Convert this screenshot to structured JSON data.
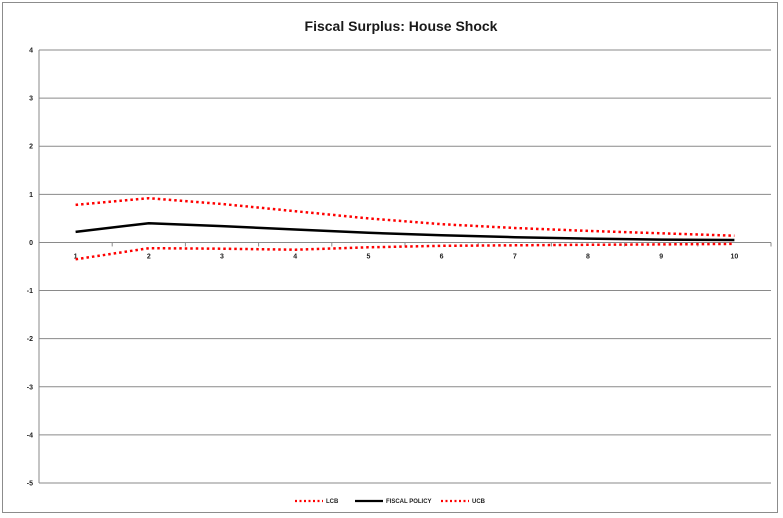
{
  "chart_data": {
    "type": "line",
    "title": "Fiscal Surplus: House Shock",
    "xlabel": "",
    "ylabel": "",
    "x": [
      1,
      2,
      3,
      4,
      5,
      6,
      7,
      8,
      9,
      10
    ],
    "x_tick_labels": [
      "1",
      "2",
      "3",
      "4",
      "5",
      "6",
      "7",
      "8",
      "9",
      "10"
    ],
    "y_tick_labels": [
      "4",
      "3",
      "2",
      "1",
      "0",
      "-1",
      "-2",
      "-3",
      "-4",
      "-5"
    ],
    "ylim": [
      -5,
      4
    ],
    "grid": true,
    "legend_position": "bottom",
    "series": [
      {
        "name": "LCB",
        "style": "dotted",
        "color": "#ff0000",
        "values": [
          -0.35,
          -0.12,
          -0.13,
          -0.15,
          -0.1,
          -0.07,
          -0.06,
          -0.05,
          -0.04,
          -0.03
        ]
      },
      {
        "name": "FISCAL POLICY",
        "style": "solid",
        "color": "#000000",
        "values": [
          0.22,
          0.4,
          0.34,
          0.27,
          0.2,
          0.15,
          0.11,
          0.08,
          0.06,
          0.05
        ]
      },
      {
        "name": "UCB",
        "style": "dotted",
        "color": "#ff0000",
        "values": [
          0.78,
          0.92,
          0.8,
          0.65,
          0.5,
          0.38,
          0.3,
          0.24,
          0.19,
          0.14
        ]
      }
    ]
  }
}
